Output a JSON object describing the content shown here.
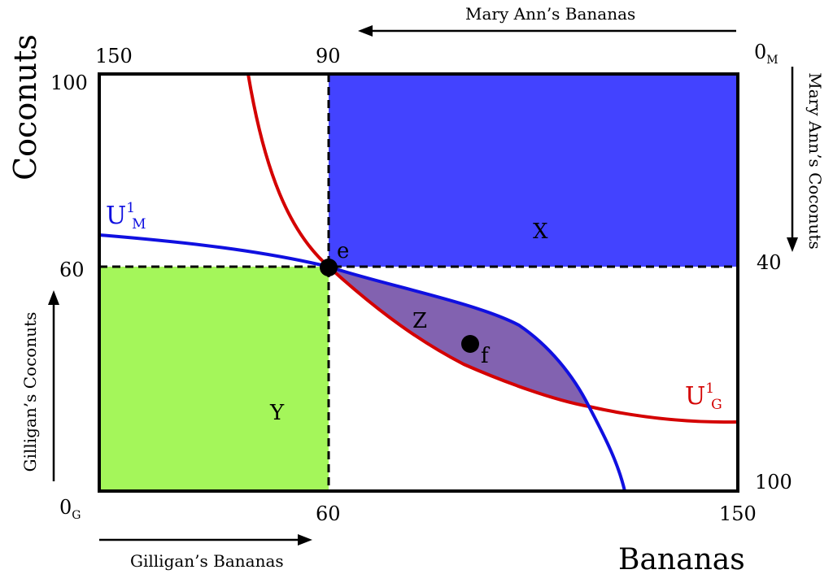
{
  "diagram": {
    "type": "edgeworth-box",
    "axes": {
      "y_title": "Coconuts",
      "x_title": "Bananas",
      "top_title": "Mary Ann’s Bananas",
      "right_title": "Mary Ann’s Coconuts",
      "left_title": "Gilligan’s Coconuts",
      "bottom_title": "Gilligan’s Bananas",
      "origin_gilligan": {
        "main": "0",
        "sub": "G"
      },
      "origin_maryann": {
        "main": "0",
        "sub": "M"
      },
      "bottom_ticks": [
        "60",
        "150"
      ],
      "left_ticks": [
        "100",
        "60"
      ],
      "top_ticks": [
        "150",
        "90"
      ],
      "right_ticks": [
        "40",
        "100"
      ],
      "box_bananas": 150,
      "box_coconuts": 100
    },
    "endowment": {
      "label": "e",
      "gilligan_bananas": 60,
      "gilligan_coconuts": 60
    },
    "point_f": {
      "label": "f"
    },
    "regions": {
      "x": "X",
      "y": "Y",
      "z": "Z"
    },
    "curves": {
      "u_maryann": {
        "main": "U",
        "sup": "1",
        "sub": "M"
      },
      "u_gilligan": {
        "main": "U",
        "sup": "1",
        "sub": "G"
      }
    },
    "colors": {
      "region_x": "#4343ff",
      "region_y": "#a4f65a",
      "region_z": "#8262b0",
      "u_maryann": "#1010e0",
      "u_gilligan": "#d40000",
      "axis": "#000000"
    }
  }
}
